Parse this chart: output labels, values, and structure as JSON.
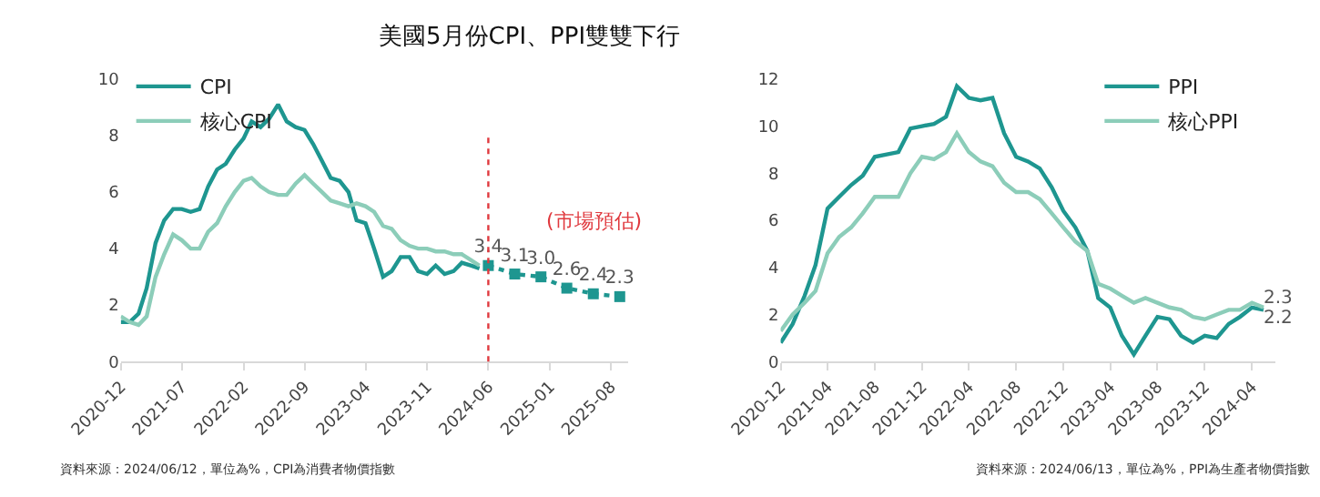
{
  "chart_data": [
    {
      "type": "line",
      "title": "美國5月份CPI、PPI雙雙下行",
      "xlim": [
        "2020-12",
        "2025-10"
      ],
      "xticks": [
        "2020-12",
        "2021-07",
        "2022-02",
        "2022-09",
        "2023-04",
        "2023-11",
        "2024-06",
        "2025-01",
        "2025-08"
      ],
      "ylim": [
        0,
        10
      ],
      "yticks": [
        0,
        2,
        4,
        6,
        8,
        10
      ],
      "grid": false,
      "legend": "top left",
      "x": [
        "2020-12",
        "2021-01",
        "2021-02",
        "2021-03",
        "2021-04",
        "2021-05",
        "2021-06",
        "2021-07",
        "2021-08",
        "2021-09",
        "2021-10",
        "2021-11",
        "2021-12",
        "2022-01",
        "2022-02",
        "2022-03",
        "2022-04",
        "2022-05",
        "2022-06",
        "2022-07",
        "2022-08",
        "2022-09",
        "2022-10",
        "2022-11",
        "2022-12",
        "2023-01",
        "2023-02",
        "2023-03",
        "2023-04",
        "2023-05",
        "2023-06",
        "2023-07",
        "2023-08",
        "2023-09",
        "2023-10",
        "2023-11",
        "2023-12",
        "2024-01",
        "2024-02",
        "2024-03",
        "2024-04",
        "2024-05"
      ],
      "series": [
        {
          "name": "CPI",
          "color": "#1e9690",
          "values": [
            1.4,
            1.4,
            1.7,
            2.6,
            4.2,
            5.0,
            5.4,
            5.4,
            5.3,
            5.4,
            6.2,
            6.8,
            7.0,
            7.5,
            7.9,
            8.5,
            8.3,
            8.6,
            9.1,
            8.5,
            8.3,
            8.2,
            7.7,
            7.1,
            6.5,
            6.4,
            6.0,
            5.0,
            4.9,
            4.0,
            3.0,
            3.2,
            3.7,
            3.7,
            3.2,
            3.1,
            3.4,
            3.1,
            3.2,
            3.5,
            3.4,
            3.3
          ]
        },
        {
          "name": "核心CPI",
          "color": "#8ccdb9",
          "values": [
            1.6,
            1.4,
            1.3,
            1.6,
            3.0,
            3.8,
            4.5,
            4.3,
            4.0,
            4.0,
            4.6,
            4.9,
            5.5,
            6.0,
            6.4,
            6.5,
            6.2,
            6.0,
            5.9,
            5.9,
            6.3,
            6.6,
            6.3,
            6.0,
            5.7,
            5.6,
            5.5,
            5.6,
            5.5,
            5.3,
            4.8,
            4.7,
            4.3,
            4.1,
            4.0,
            4.0,
            3.9,
            3.9,
            3.8,
            3.8,
            3.6,
            3.4
          ]
        },
        {
          "color": "#1e9690",
          "marker": "square",
          "line_style": "dotted",
          "x": [
            "2024-06",
            "2024-09",
            "2024-12",
            "2025-03",
            "2025-06",
            "2025-09"
          ],
          "values": [
            3.4,
            3.1,
            3.0,
            2.6,
            2.4,
            2.3
          ],
          "value_labels": [
            "3.4",
            "3.1",
            "3.0",
            "2.6",
            "2.4",
            "2.3"
          ]
        }
      ],
      "ref_lines": [
        {
          "axis": "x",
          "value": "2024-06",
          "color": "#e0393e",
          "line_style": "dotted"
        }
      ],
      "annotations": [
        "(市場預估)",
        "資料來源：2024/06/12，單位為%，CPI為消費者物價指數"
      ]
    },
    {
      "type": "line",
      "xlim": [
        "2020-12",
        "2024-06"
      ],
      "xticks": [
        "2020-12",
        "2021-04",
        "2021-08",
        "2021-12",
        "2022-04",
        "2022-08",
        "2022-12",
        "2023-04",
        "2023-08",
        "2023-12",
        "2024-04"
      ],
      "ylim": [
        0,
        12
      ],
      "yticks": [
        0,
        2,
        4,
        6,
        8,
        10,
        12
      ],
      "grid": false,
      "legend": "top right",
      "x": [
        "2020-12",
        "2021-01",
        "2021-02",
        "2021-03",
        "2021-04",
        "2021-05",
        "2021-06",
        "2021-07",
        "2021-08",
        "2021-09",
        "2021-10",
        "2021-11",
        "2021-12",
        "2022-01",
        "2022-02",
        "2022-03",
        "2022-04",
        "2022-05",
        "2022-06",
        "2022-07",
        "2022-08",
        "2022-09",
        "2022-10",
        "2022-11",
        "2022-12",
        "2023-01",
        "2023-02",
        "2023-03",
        "2023-04",
        "2023-05",
        "2023-06",
        "2023-07",
        "2023-08",
        "2023-09",
        "2023-10",
        "2023-11",
        "2023-12",
        "2024-01",
        "2024-02",
        "2024-03",
        "2024-04",
        "2024-05"
      ],
      "series": [
        {
          "name": "PPI",
          "color": "#1e9690",
          "values": [
            0.8,
            1.6,
            2.8,
            4.1,
            6.5,
            7.0,
            7.5,
            7.9,
            8.7,
            8.8,
            8.9,
            9.9,
            10.0,
            10.1,
            10.4,
            11.7,
            11.2,
            11.1,
            11.2,
            9.7,
            8.7,
            8.5,
            8.2,
            7.4,
            6.4,
            5.7,
            4.7,
            2.7,
            2.3,
            1.1,
            0.3,
            1.1,
            1.9,
            1.8,
            1.1,
            0.8,
            1.1,
            1.0,
            1.6,
            1.9,
            2.3,
            2.2
          ],
          "value_labels": [
            null,
            null,
            null,
            null,
            null,
            null,
            null,
            null,
            null,
            null,
            null,
            null,
            null,
            null,
            null,
            null,
            null,
            null,
            null,
            null,
            null,
            null,
            null,
            null,
            null,
            null,
            null,
            null,
            null,
            null,
            null,
            null,
            null,
            null,
            null,
            null,
            null,
            null,
            null,
            null,
            null,
            "2.2"
          ]
        },
        {
          "name": "核心PPI",
          "color": "#8ccdb9",
          "values": [
            1.3,
            2.0,
            2.5,
            3.0,
            4.6,
            5.3,
            5.7,
            6.3,
            7.0,
            7.0,
            7.0,
            8.0,
            8.7,
            8.6,
            8.9,
            9.7,
            8.9,
            8.5,
            8.3,
            7.6,
            7.2,
            7.2,
            6.9,
            6.3,
            5.7,
            5.1,
            4.7,
            3.3,
            3.1,
            2.8,
            2.5,
            2.7,
            2.5,
            2.3,
            2.2,
            1.9,
            1.8,
            2.0,
            2.2,
            2.2,
            2.5,
            2.3
          ],
          "value_labels": [
            null,
            null,
            null,
            null,
            null,
            null,
            null,
            null,
            null,
            null,
            null,
            null,
            null,
            null,
            null,
            null,
            null,
            null,
            null,
            null,
            null,
            null,
            null,
            null,
            null,
            null,
            null,
            null,
            null,
            null,
            null,
            null,
            null,
            null,
            null,
            null,
            null,
            null,
            null,
            null,
            null,
            "2.3"
          ]
        }
      ],
      "annotations": [
        "資料來源：2024/06/13，單位為%，PPI為生產者物價指數"
      ]
    }
  ]
}
